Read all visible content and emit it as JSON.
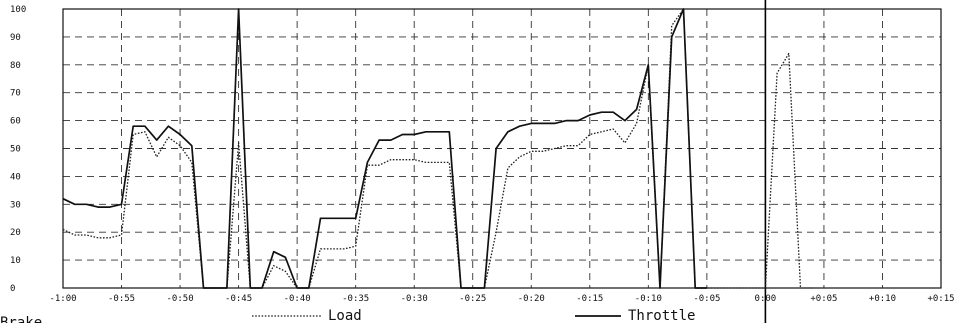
{
  "chart_data": {
    "type": "line",
    "title": "",
    "xlabel": "",
    "ylabel": "",
    "ylim": [
      0,
      100
    ],
    "xlim": [
      -60,
      15
    ],
    "grid": true,
    "legend_position": "bottom",
    "y_ticks": [
      "0",
      "10",
      "20",
      "30",
      "40",
      "50",
      "60",
      "70",
      "80",
      "90",
      "100"
    ],
    "x_ticks": [
      {
        "value": -60,
        "label": "-1:00"
      },
      {
        "value": -55,
        "label": "-0:55"
      },
      {
        "value": -50,
        "label": "-0:50"
      },
      {
        "value": -45,
        "label": "-0:45"
      },
      {
        "value": -40,
        "label": "-0:40"
      },
      {
        "value": -35,
        "label": "-0:35"
      },
      {
        "value": -30,
        "label": "-0:30"
      },
      {
        "value": -25,
        "label": "-0:25"
      },
      {
        "value": -20,
        "label": "-0:20"
      },
      {
        "value": -15,
        "label": "-0:15"
      },
      {
        "value": -10,
        "label": "-0:10"
      },
      {
        "value": -5,
        "label": "-0:05"
      },
      {
        "value": 0,
        "label": "0:00"
      },
      {
        "value": 5,
        "label": "+0:05"
      },
      {
        "value": 10,
        "label": "+0:10"
      },
      {
        "value": 15,
        "label": "+0:15"
      }
    ],
    "marker_x": 0,
    "partial_label": "Brake",
    "series": [
      {
        "name": "Load",
        "style": "dotted",
        "color": "#222222",
        "points": [
          [
            -60,
            21
          ],
          [
            -59,
            19
          ],
          [
            -58,
            19
          ],
          [
            -57,
            18
          ],
          [
            -56,
            18
          ],
          [
            -55,
            19
          ],
          [
            -54,
            55
          ],
          [
            -53,
            56
          ],
          [
            -52,
            47
          ],
          [
            -51,
            54
          ],
          [
            -50,
            51
          ],
          [
            -49,
            45
          ],
          [
            -48,
            0
          ],
          [
            -46,
            0
          ],
          [
            -45,
            52
          ],
          [
            -44,
            0
          ],
          [
            -43,
            0
          ],
          [
            -42,
            8
          ],
          [
            -41,
            6
          ],
          [
            -40,
            0
          ],
          [
            -39,
            0
          ],
          [
            -38,
            14
          ],
          [
            -37,
            14
          ],
          [
            -36,
            14
          ],
          [
            -35,
            15
          ],
          [
            -34,
            44
          ],
          [
            -33,
            44
          ],
          [
            -32,
            46
          ],
          [
            -31,
            46
          ],
          [
            -30,
            46
          ],
          [
            -29,
            45
          ],
          [
            -28,
            45
          ],
          [
            -27,
            45
          ],
          [
            -26,
            0
          ],
          [
            -25,
            0
          ],
          [
            -24,
            0
          ],
          [
            -23,
            20
          ],
          [
            -22,
            43
          ],
          [
            -21,
            47
          ],
          [
            -20,
            49
          ],
          [
            -19,
            49
          ],
          [
            -18,
            50
          ],
          [
            -17,
            51
          ],
          [
            -16,
            51
          ],
          [
            -15,
            55
          ],
          [
            -14,
            56
          ],
          [
            -13,
            57
          ],
          [
            -12,
            52
          ],
          [
            -11,
            59
          ],
          [
            -10,
            80
          ],
          [
            -9,
            0
          ],
          [
            -8,
            94
          ],
          [
            -7,
            100
          ],
          [
            -6,
            0
          ],
          [
            -5,
            0
          ],
          [
            -4,
            0
          ],
          [
            -3,
            0
          ],
          [
            -2,
            0
          ],
          [
            -1,
            0
          ],
          [
            0,
            0
          ],
          [
            1,
            77
          ],
          [
            2,
            84
          ],
          [
            3,
            0
          ],
          [
            4,
            0
          ]
        ]
      },
      {
        "name": "Throttle",
        "style": "solid",
        "color": "#111111",
        "points": [
          [
            -60,
            32
          ],
          [
            -59,
            30
          ],
          [
            -58,
            30
          ],
          [
            -57,
            29
          ],
          [
            -56,
            29
          ],
          [
            -55,
            30
          ],
          [
            -54,
            58
          ],
          [
            -53,
            58
          ],
          [
            -52,
            53
          ],
          [
            -51,
            58
          ],
          [
            -50,
            55
          ],
          [
            -49,
            51
          ],
          [
            -48,
            0
          ],
          [
            -46,
            0
          ],
          [
            -45,
            100
          ],
          [
            -44,
            0
          ],
          [
            -43,
            0
          ],
          [
            -42,
            13
          ],
          [
            -41,
            11
          ],
          [
            -40,
            0
          ],
          [
            -39,
            0
          ],
          [
            -38,
            25
          ],
          [
            -37,
            25
          ],
          [
            -36,
            25
          ],
          [
            -35,
            25
          ],
          [
            -34,
            45
          ],
          [
            -33,
            53
          ],
          [
            -32,
            53
          ],
          [
            -31,
            55
          ],
          [
            -30,
            55
          ],
          [
            -29,
            56
          ],
          [
            -28,
            56
          ],
          [
            -27,
            56
          ],
          [
            -26,
            0
          ],
          [
            -25,
            0
          ],
          [
            -24,
            0
          ],
          [
            -23,
            50
          ],
          [
            -22,
            56
          ],
          [
            -21,
            58
          ],
          [
            -20,
            59
          ],
          [
            -19,
            59
          ],
          [
            -18,
            59
          ],
          [
            -17,
            60
          ],
          [
            -16,
            60
          ],
          [
            -15,
            62
          ],
          [
            -14,
            63
          ],
          [
            -13,
            63
          ],
          [
            -12,
            60
          ],
          [
            -11,
            64
          ],
          [
            -10,
            80
          ],
          [
            -9,
            0
          ],
          [
            -8,
            90
          ],
          [
            -7,
            100
          ],
          [
            -6,
            0
          ],
          [
            -5,
            0
          ]
        ]
      }
    ]
  }
}
